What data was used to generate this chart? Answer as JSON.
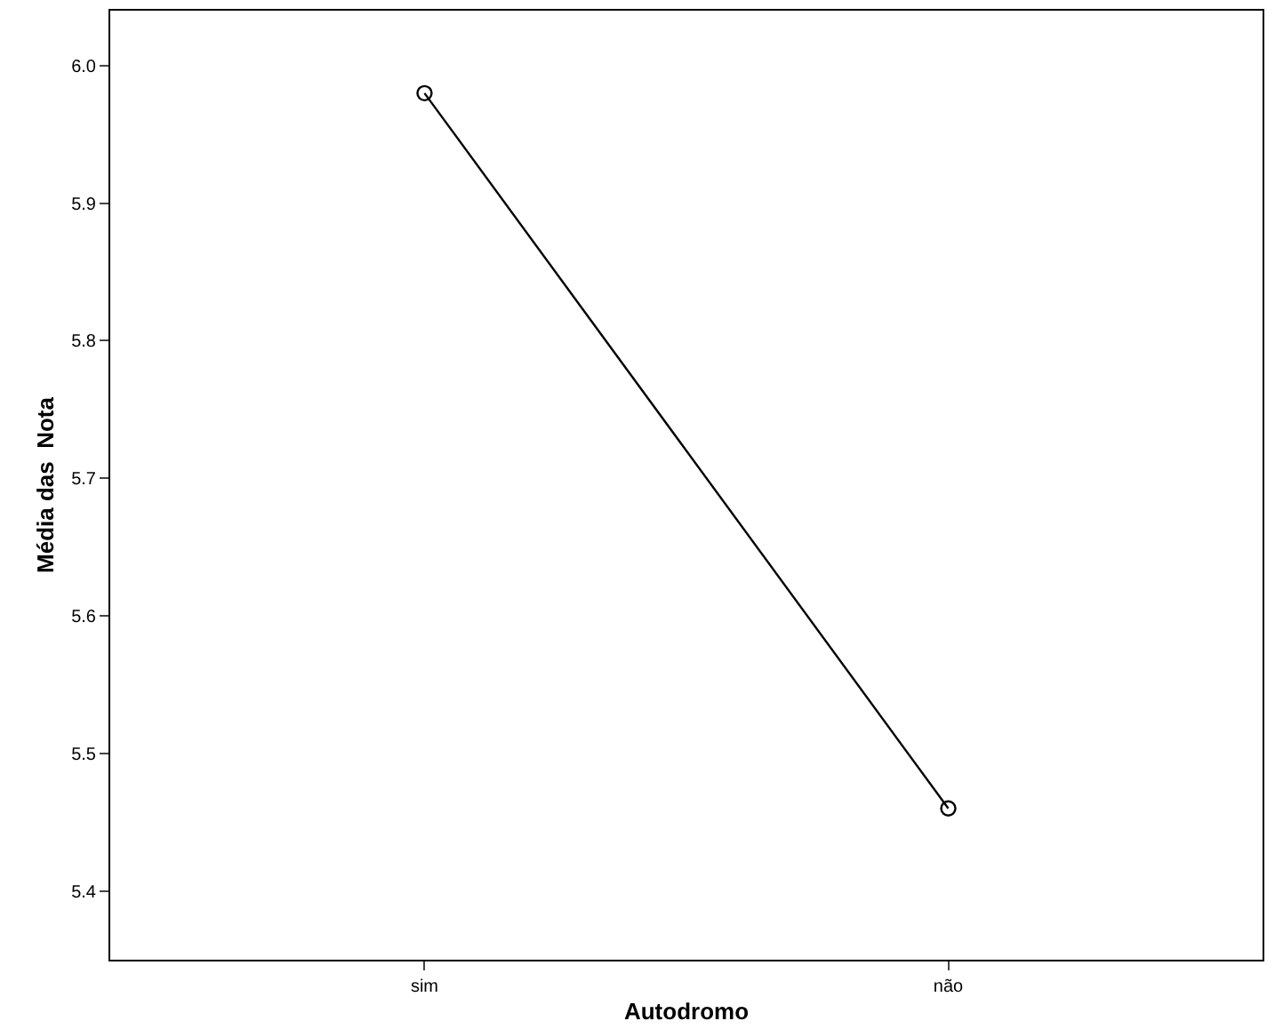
{
  "chart_data": {
    "type": "line",
    "xlabel": "Autodromo",
    "ylabel": "Média das  Nota",
    "categories": [
      "sim",
      "não"
    ],
    "series": [
      {
        "color": "#000000",
        "values": [
          5.98,
          5.46
        ]
      }
    ],
    "ylim": [
      5.35,
      6.04
    ],
    "yticks": [
      5.4,
      5.5,
      5.6,
      5.7,
      5.8,
      5.9,
      {
        "value": 6.0,
        "label": "6.0"
      }
    ],
    "legend": false,
    "marker": "circle",
    "line_style": "solid"
  }
}
